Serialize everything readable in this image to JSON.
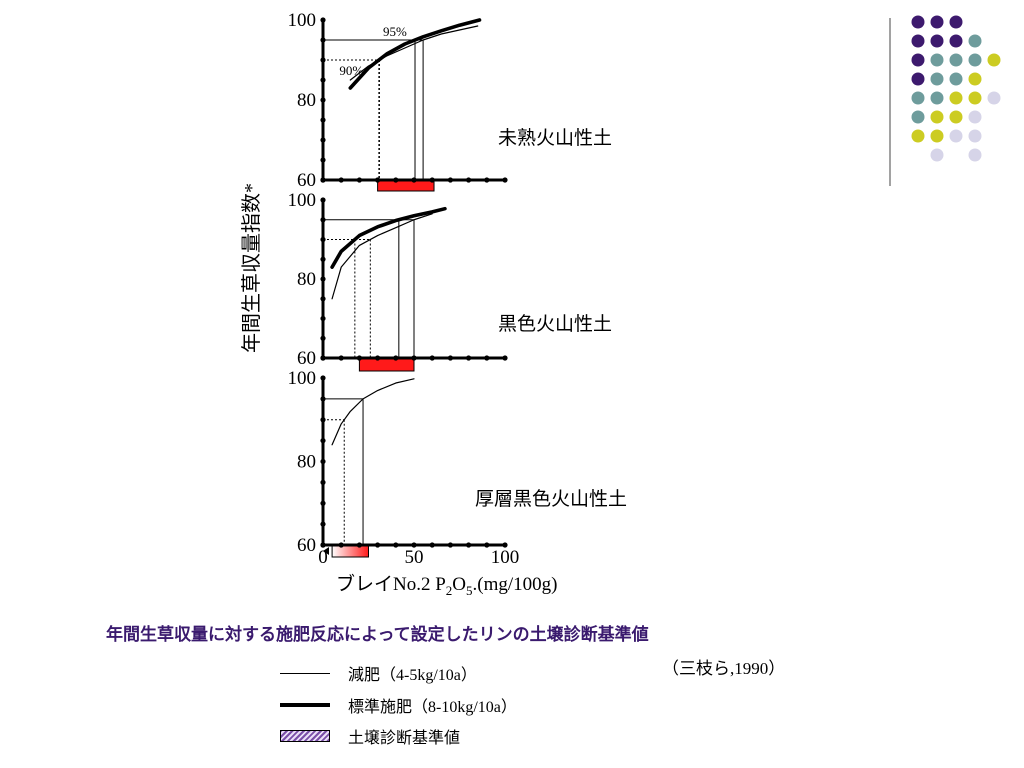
{
  "chart_data": [
    {
      "type": "line",
      "panel_label": "未熟火山性土",
      "ylim": [
        60,
        100
      ],
      "y_ticks": [
        "100",
        "80",
        "60"
      ],
      "x_range": [
        0,
        100
      ],
      "series": [
        {
          "name": "減肥（4-5kg/10a）",
          "style": "thin",
          "x": [
            15,
            25,
            35,
            45,
            55,
            65,
            75,
            85
          ],
          "y": [
            85,
            88.5,
            91,
            93,
            95,
            96.5,
            97.5,
            98.5
          ]
        },
        {
          "name": "標準施肥（8-10kg/10a）",
          "style": "thick",
          "x": [
            15,
            25,
            35,
            45,
            55,
            65,
            75,
            86
          ],
          "y": [
            83,
            88,
            91.5,
            94,
            95.8,
            97.3,
            98.7,
            100
          ]
        }
      ],
      "annotations": [
        {
          "text": "95%",
          "y": 95
        },
        {
          "text": "90%",
          "y": 90
        }
      ],
      "range_bar": [
        30,
        61
      ]
    },
    {
      "type": "line",
      "panel_label": "黒色火山性土",
      "ylim": [
        60,
        100
      ],
      "y_ticks": [
        "100",
        "80",
        "60"
      ],
      "x_range": [
        0,
        100
      ],
      "series": [
        {
          "name": "減肥（4-5kg/10a）",
          "style": "thin",
          "x": [
            5,
            10,
            20,
            30,
            40,
            50,
            60
          ],
          "y": [
            75,
            83,
            88.5,
            91,
            93,
            95,
            96.5
          ]
        },
        {
          "name": "標準施肥（8-10kg/10a）",
          "style": "thick",
          "x": [
            5,
            10,
            20,
            30,
            40,
            50,
            60,
            67
          ],
          "y": [
            83,
            87,
            91,
            93.2,
            94.8,
            96,
            97,
            97.8
          ]
        }
      ],
      "range_bar": [
        20,
        50
      ]
    },
    {
      "type": "line",
      "panel_label": "厚層黒色火山性土",
      "ylim": [
        60,
        100
      ],
      "y_ticks": [
        "100",
        "80",
        "60"
      ],
      "x_ticks": [
        "0",
        "50",
        "100"
      ],
      "x_range": [
        0,
        100
      ],
      "series": [
        {
          "name": "減肥（4-5kg/10a）",
          "style": "thin",
          "x": [
            5,
            10,
            15,
            22,
            30,
            40,
            50
          ],
          "y": [
            84,
            89,
            92,
            95,
            97,
            98.8,
            99.8
          ]
        }
      ],
      "range_bar": [
        5,
        25
      ],
      "xlabel_main": "ブレイNo.2  P",
      "xlabel_sub1": "2",
      "xlabel_mid": "O",
      "xlabel_sub2": "5",
      "xlabel_tail": ".(mg/100g)"
    }
  ],
  "ylabel": "年間生草収量指数*",
  "caption": "年間生草収量に対する施肥反応によって設定したリンの土壌診断基準値",
  "citation": "（三枝ら,1990）",
  "legend": [
    {
      "label": "減肥（4-5kg/10a）"
    },
    {
      "label": "標準施肥（8-10kg/10a）"
    },
    {
      "label": "土壌診断基準値"
    }
  ],
  "colors": {
    "range_bar": "#ff1a1a",
    "caption": "#3a1a6e",
    "dot_purple": "#3d1a6e",
    "dot_teal": "#6e9c9c",
    "dot_yellow": "#cccc22",
    "dot_lavender": "#d6d4e8"
  },
  "decor_dots": [
    [
      "purple",
      "purple",
      "purple",
      null
    ],
    [
      "purple",
      "purple",
      "purple",
      "teal"
    ],
    [
      "purple",
      "teal",
      "teal",
      "teal",
      "yellow"
    ],
    [
      "purple",
      "teal",
      "teal",
      "yellow"
    ],
    [
      "teal",
      "teal",
      "yellow",
      "yellow",
      "lavender"
    ],
    [
      "teal",
      "yellow",
      "yellow",
      "lavender"
    ],
    [
      "yellow",
      "yellow",
      "lavender",
      "lavender"
    ],
    [
      null,
      "lavender",
      null,
      "lavender"
    ]
  ]
}
